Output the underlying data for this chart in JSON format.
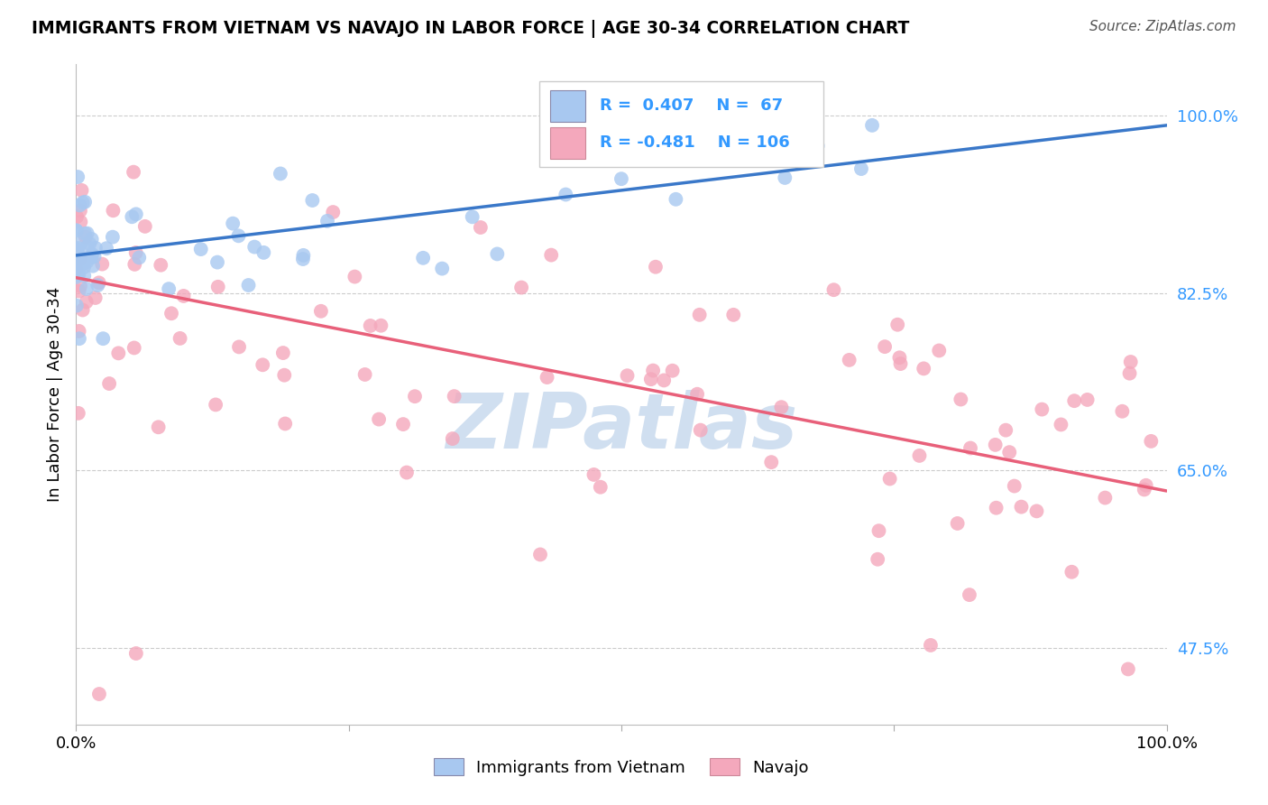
{
  "title": "IMMIGRANTS FROM VIETNAM VS NAVAJO IN LABOR FORCE | AGE 30-34 CORRELATION CHART",
  "source": "Source: ZipAtlas.com",
  "ylabel": "In Labor Force | Age 30-34",
  "xmin": 0.0,
  "xmax": 1.0,
  "ymin": 0.4,
  "ymax": 1.05,
  "ytick_vals": [
    0.475,
    0.65,
    0.825,
    1.0
  ],
  "ytick_labels": [
    "47.5%",
    "65.0%",
    "82.5%",
    "100.0%"
  ],
  "R_vietnam": 0.407,
  "N_vietnam": 67,
  "R_navajo": -0.481,
  "N_navajo": 106,
  "color_vietnam": "#A8C8F0",
  "color_navajo": "#F4A8BC",
  "color_vietnam_line": "#3A78C9",
  "color_navajo_line": "#E8607A",
  "watermark_color": "#D0DFF0",
  "background_color": "#FFFFFF",
  "viet_line_x0": 0.0,
  "viet_line_y0": 0.862,
  "viet_line_x1": 1.0,
  "viet_line_y1": 0.99,
  "nav_line_x0": 0.0,
  "nav_line_y0": 0.84,
  "nav_line_x1": 1.0,
  "nav_line_y1": 0.63
}
